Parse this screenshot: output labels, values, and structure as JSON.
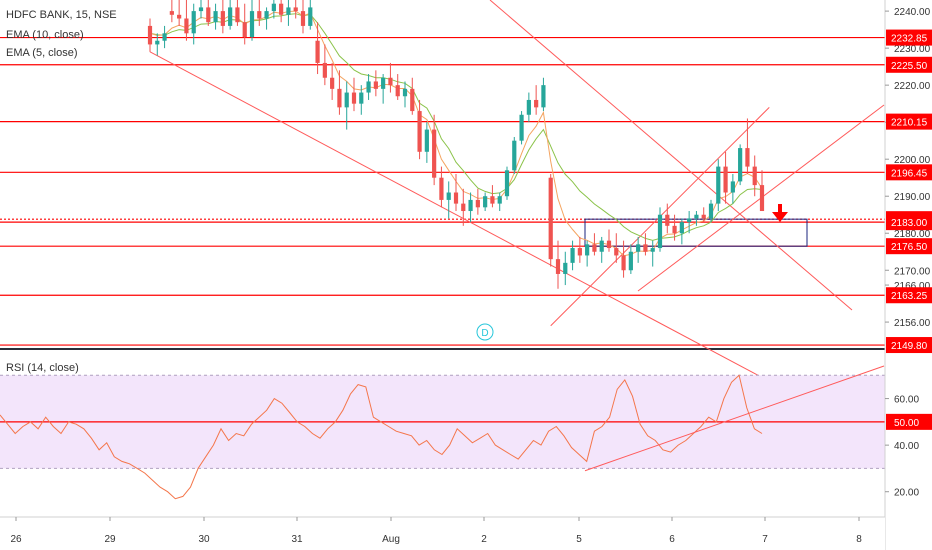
{
  "header": {
    "symbol_label": "HDFC BANK, 15, NSE",
    "ema10_label": "EMA (10, close)",
    "ema5_label": "EMA (5, close)",
    "rsi_label": "RSI (14, close)"
  },
  "colors": {
    "up": "#26a69a",
    "down": "#ef5350",
    "level_line": "#ff0000",
    "ema10": "#8bc34a",
    "ema5": "#f4a460",
    "rsi_line": "#f4764b",
    "rsi_band": "#f3e5fb",
    "trendline": "#ff5a5a",
    "zone_border": "#1a237e",
    "axis_badge": "#ff0000",
    "divider": "#2a2e39",
    "dividend_marker": "#26c6da"
  },
  "chart_data": [
    {
      "type": "candlestick",
      "title": "HDFC BANK, 15, NSE",
      "ylim": [
        2149,
        2243
      ],
      "y_ticks": [
        2240.0,
        2230.0,
        2220.0,
        2210.0,
        2200.0,
        2190.0,
        2180.0,
        2170.0,
        2166.0,
        2156.0
      ],
      "x_tick_labels": [
        "26",
        "29",
        "30",
        "31",
        "Aug",
        "2",
        "5",
        "6",
        "7",
        "8"
      ],
      "price_levels": [
        {
          "label": "2232.85",
          "value": 2232.85
        },
        {
          "label": "2225.50",
          "value": 2225.5
        },
        {
          "label": "2210.15",
          "value": 2210.15
        },
        {
          "label": "2196.45",
          "value": 2196.45
        },
        {
          "label": "2183.80",
          "value": 2183.8
        },
        {
          "label": "2183.00",
          "value": 2183.0
        },
        {
          "label": "2176.50",
          "value": 2176.5
        },
        {
          "label": "2163.25",
          "value": 2163.25
        },
        {
          "label": "2149.80",
          "value": 2149.8
        }
      ],
      "candles": [
        [
          2236,
          2238,
          2229,
          2231
        ],
        [
          2231,
          2234,
          2228,
          2232
        ],
        [
          2232,
          2236,
          2230,
          2234
        ],
        [
          2240,
          2243,
          2237,
          2239
        ],
        [
          2239,
          2243,
          2236,
          2238
        ],
        [
          2238,
          2243,
          2232,
          2234
        ],
        [
          2234,
          2242,
          2231,
          2240
        ],
        [
          2240,
          2243,
          2238,
          2241
        ],
        [
          2241,
          2243,
          2236,
          2237
        ],
        [
          2237,
          2242,
          2235,
          2240
        ],
        [
          2240,
          2243,
          2234,
          2236
        ],
        [
          2236,
          2243,
          2235,
          2241
        ],
        [
          2241,
          2243,
          2236,
          2237
        ],
        [
          2237,
          2242,
          2231,
          2233
        ],
        [
          2233,
          2243,
          2232,
          2240
        ],
        [
          2240,
          2243,
          2236,
          2238
        ],
        [
          2238,
          2241,
          2235,
          2240
        ],
        [
          2240,
          2243,
          2238,
          2242
        ],
        [
          2242,
          2243,
          2237,
          2239
        ],
        [
          2239,
          2243,
          2236,
          2241
        ],
        [
          2241,
          2243,
          2238,
          2240
        ],
        [
          2240,
          2243,
          2234,
          2236
        ],
        [
          2236,
          2243,
          2235,
          2241
        ],
        [
          2232,
          2237,
          2223,
          2226
        ],
        [
          2226,
          2231,
          2220,
          2222
        ],
        [
          2222,
          2226,
          2216,
          2219
        ],
        [
          2219,
          2224,
          2212,
          2214
        ],
        [
          2214,
          2221,
          2208,
          2218
        ],
        [
          2218,
          2222,
          2213,
          2215
        ],
        [
          2215,
          2220,
          2212,
          2218
        ],
        [
          2218,
          2223,
          2216,
          2221
        ],
        [
          2221,
          2224,
          2217,
          2219
        ],
        [
          2219,
          2223,
          2215,
          2222
        ],
        [
          2222,
          2226,
          2218,
          2220
        ],
        [
          2220,
          2223,
          2216,
          2217
        ],
        [
          2217,
          2221,
          2214,
          2219
        ],
        [
          2219,
          2222,
          2212,
          2213
        ],
        [
          2213,
          2216,
          2200,
          2202
        ],
        [
          2202,
          2210,
          2199,
          2208
        ],
        [
          2208,
          2212,
          2193,
          2195
        ],
        [
          2195,
          2198,
          2187,
          2189
        ],
        [
          2189,
          2194,
          2184,
          2191
        ],
        [
          2191,
          2196,
          2186,
          2188
        ],
        [
          2188,
          2192,
          2182,
          2186
        ],
        [
          2186,
          2191,
          2183,
          2189
        ],
        [
          2189,
          2192,
          2185,
          2187
        ],
        [
          2187,
          2191,
          2186,
          2190
        ],
        [
          2190,
          2193,
          2187,
          2188
        ],
        [
          2188,
          2191,
          2186,
          2190
        ],
        [
          2190,
          2198,
          2189,
          2197
        ],
        [
          2197,
          2206,
          2196,
          2205
        ],
        [
          2205,
          2213,
          2204,
          2212
        ],
        [
          2212,
          2218,
          2210,
          2216
        ],
        [
          2216,
          2220,
          2212,
          2214
        ],
        [
          2214,
          2222,
          2213,
          2220
        ],
        [
          2195,
          2196,
          2171,
          2173
        ],
        [
          2173,
          2178,
          2165,
          2169
        ],
        [
          2169,
          2175,
          2166,
          2172
        ],
        [
          2172,
          2178,
          2170,
          2176
        ],
        [
          2176,
          2179,
          2172,
          2174
        ],
        [
          2174,
          2178,
          2171,
          2177
        ],
        [
          2177,
          2180,
          2174,
          2175
        ],
        [
          2175,
          2179,
          2172,
          2178
        ],
        [
          2178,
          2181,
          2175,
          2176
        ],
        [
          2176,
          2180,
          2172,
          2174
        ],
        [
          2174,
          2178,
          2168,
          2170
        ],
        [
          2170,
          2177,
          2169,
          2175
        ],
        [
          2175,
          2179,
          2172,
          2177
        ],
        [
          2177,
          2180,
          2174,
          2175
        ],
        [
          2175,
          2178,
          2171,
          2176
        ],
        [
          2176,
          2187,
          2175,
          2185
        ],
        [
          2185,
          2188,
          2180,
          2182
        ],
        [
          2182,
          2185,
          2178,
          2180
        ],
        [
          2180,
          2184,
          2177,
          2183
        ],
        [
          2183,
          2186,
          2180,
          2184
        ],
        [
          2184,
          2186,
          2182,
          2185
        ],
        [
          2185,
          2187,
          2183,
          2184
        ],
        [
          2184,
          2189,
          2183,
          2188
        ],
        [
          2188,
          2200,
          2186,
          2198
        ],
        [
          2198,
          2202,
          2188,
          2191
        ],
        [
          2191,
          2196,
          2188,
          2194
        ],
        [
          2194,
          2204,
          2193,
          2203
        ],
        [
          2203,
          2211,
          2196,
          2198
        ],
        [
          2198,
          2201,
          2190,
          2193
        ],
        [
          2193,
          2197,
          2186,
          2186
        ]
      ],
      "ema10": [
        2234,
        2233.6,
        2233.5,
        2234.4,
        2235,
        2234.8,
        2235.6,
        2236.5,
        2236.6,
        2237.2,
        2237,
        2237.7,
        2237.6,
        2236.8,
        2237.4,
        2237.5,
        2237.9,
        2238.6,
        2238.7,
        2239.1,
        2239.3,
        2238.7,
        2239.1,
        2236.8,
        2234,
        2231,
        2227.9,
        2226.1,
        2224.1,
        2223.0,
        2222.6,
        2222.0,
        2222.0,
        2221.6,
        2220.9,
        2220.5,
        2219.1,
        2215.1,
        2213.8,
        2210.3,
        2205.5,
        2202.9,
        2199.2,
        2196.9,
        2194.4,
        2192.2,
        2191.3,
        2190.7,
        2190.9,
        2192.1,
        2194.5,
        2198.6,
        2202.5,
        2205.5,
        2208.0,
        2203.5,
        2199.0,
        2195.9,
        2193.9,
        2191.4,
        2189.7,
        2187.9,
        2186.5,
        2185.0,
        2183.7,
        2181.8,
        2180.4,
        2179.5,
        2178.6,
        2178.1,
        2178.6,
        2178.8,
        2179.0,
        2179.7,
        2180.7,
        2181.5,
        2182.0,
        2183.0,
        2185.6,
        2186.7,
        2188.0,
        2190.4,
        2191.8,
        2192.0,
        2191.8
      ],
      "ema5": [
        2234,
        2233.4,
        2233.6,
        2235.4,
        2236.2,
        2235.5,
        2237.0,
        2238.3,
        2237.9,
        2238.6,
        2237.7,
        2238.8,
        2238.2,
        2236.5,
        2237.6,
        2237.7,
        2238.5,
        2239.7,
        2239.4,
        2239.9,
        2240.0,
        2238.7,
        2239.4,
        2235.0,
        2230.6,
        2226.8,
        2222.5,
        2221.0,
        2219.0,
        2218.7,
        2219.5,
        2219.3,
        2220.2,
        2220.1,
        2219.1,
        2219.1,
        2217.1,
        2212.0,
        2210.7,
        2205.5,
        2200.0,
        2197.0,
        2194.0,
        2191.3,
        2190.5,
        2189.4,
        2189.6,
        2189.1,
        2189.4,
        2191.9,
        2196.3,
        2201.5,
        2206.4,
        2208.9,
        2212.6,
        2199.4,
        2189.3,
        2183.5,
        2181.0,
        2178.7,
        2178.1,
        2177.1,
        2177.4,
        2176.9,
        2175.9,
        2173.9,
        2174.3,
        2175.2,
        2175.1,
        2175.4,
        2178.6,
        2179.7,
        2179.8,
        2180.9,
        2181.9,
        2182.9,
        2183.3,
        2184.9,
        2189.3,
        2189.9,
        2191.3,
        2195.2,
        2196.1,
        2195.1,
        2192.1
      ],
      "annotations": {
        "dividend_marker": "D",
        "down_arrow": true,
        "trendlines": [
          {
            "from": [
              0,
              2229
            ],
            "to": [
              85,
              2140
            ]
          },
          {
            "from": [
              55,
              2155
            ],
            "to": [
              85,
              2214
            ]
          }
        ],
        "zone": {
          "top": 2183.8,
          "bottom": 2176.5
        }
      }
    },
    {
      "type": "line",
      "title": "RSI (14, close)",
      "ylim": [
        10,
        80
      ],
      "y_ticks": [
        60.0,
        40.0,
        20.0
      ],
      "band": [
        30,
        70
      ],
      "levels": [
        {
          "label": "50.00",
          "value": 50
        }
      ],
      "values": [
        53,
        49,
        45,
        48,
        50,
        47,
        52,
        48,
        45,
        50,
        49,
        47,
        43,
        38,
        41,
        35,
        33,
        32,
        30,
        28,
        25,
        22,
        20,
        17,
        18,
        22,
        30,
        35,
        40,
        47,
        42,
        45,
        44,
        49,
        52,
        55,
        60,
        58,
        54,
        50,
        48,
        45,
        43,
        47,
        50,
        55,
        62,
        66,
        65,
        52,
        50,
        48,
        46,
        45,
        44,
        40,
        42,
        38,
        36,
        40,
        47,
        44,
        41,
        43,
        45,
        40,
        38,
        36,
        34,
        38,
        42,
        40,
        46,
        48,
        44,
        39,
        36,
        33,
        46,
        48,
        52,
        64,
        68,
        61,
        49,
        44,
        42,
        38,
        37,
        40,
        42,
        45,
        48,
        52,
        50,
        60,
        67,
        70,
        56,
        47,
        45
      ]
    }
  ]
}
